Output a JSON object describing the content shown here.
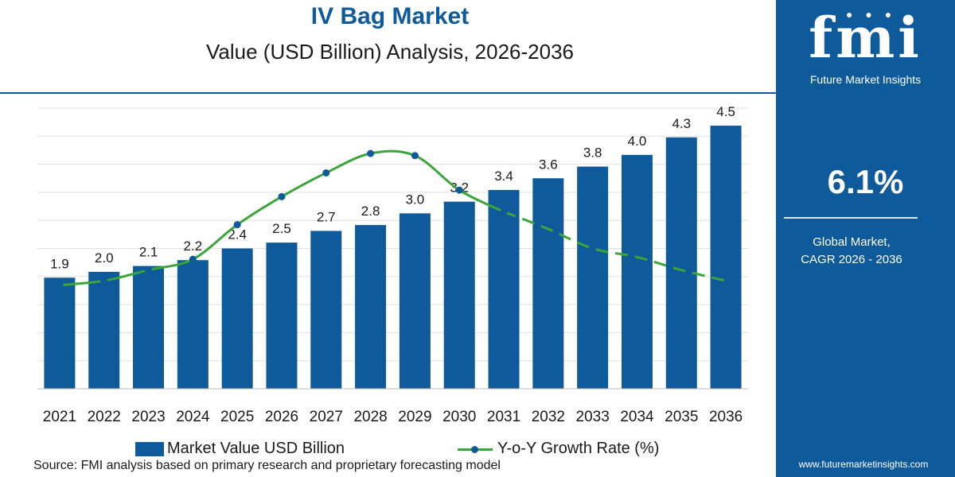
{
  "header": {
    "title": "IV Bag Market",
    "subtitle": "Value (USD Billion) Analysis, 2026-2036"
  },
  "colors": {
    "bar": "#0f5a9a",
    "line": "#3aa63a",
    "marker": "#0f5a9a",
    "grid": "#e0e0e0",
    "sidebar": "#0f5a9a"
  },
  "chart_data": {
    "type": "bar",
    "categories": [
      "2021",
      "2022",
      "2023",
      "2024",
      "2025",
      "2026",
      "2027",
      "2028",
      "2029",
      "2030",
      "2031",
      "2032",
      "2033",
      "2034",
      "2035",
      "2036"
    ],
    "series": [
      {
        "name": "Market Value USD Billion",
        "type": "bar",
        "values": [
          1.9,
          2.0,
          2.1,
          2.2,
          2.4,
          2.5,
          2.7,
          2.8,
          3.0,
          3.2,
          3.4,
          3.6,
          3.8,
          4.0,
          4.3,
          4.5
        ],
        "labels": [
          "1.9",
          "2.0",
          "2.1",
          "2.2",
          "2.4",
          "2.5",
          "2.7",
          "2.8",
          "3.0",
          "3.2",
          "3.4",
          "3.6",
          "3.8",
          "4.0",
          "4.3",
          "4.5"
        ]
      },
      {
        "name": "Y-o-Y Growth Rate (%)",
        "type": "line",
        "values": [
          4.8,
          5.0,
          5.5,
          6.0,
          7.6,
          8.9,
          10.0,
          10.9,
          10.8,
          9.2,
          8.2,
          7.4,
          6.5,
          6.1,
          5.5,
          5.0
        ],
        "solid_through": "2031",
        "dashed_after": "2031",
        "markers_through": "2031"
      }
    ],
    "ylim": [
      0,
      4.8
    ],
    "y2lim": [
      0,
      13
    ],
    "grid": true,
    "legend": "bottom"
  },
  "legend": {
    "bar_label": "Market Value USD Billion",
    "line_label": "Y-o-Y Growth Rate (%)"
  },
  "source": "Source: FMI analysis based on primary research and proprietary forecasting model",
  "sidebar": {
    "logo_text": "fmi",
    "brand": "Future Market Insights",
    "cagr_value": "6.1%",
    "cagr_label_line1": "Global Market,",
    "cagr_label_line2": "CAGR 2026 - 2036",
    "website": "www.futuremarketinsights.com"
  }
}
